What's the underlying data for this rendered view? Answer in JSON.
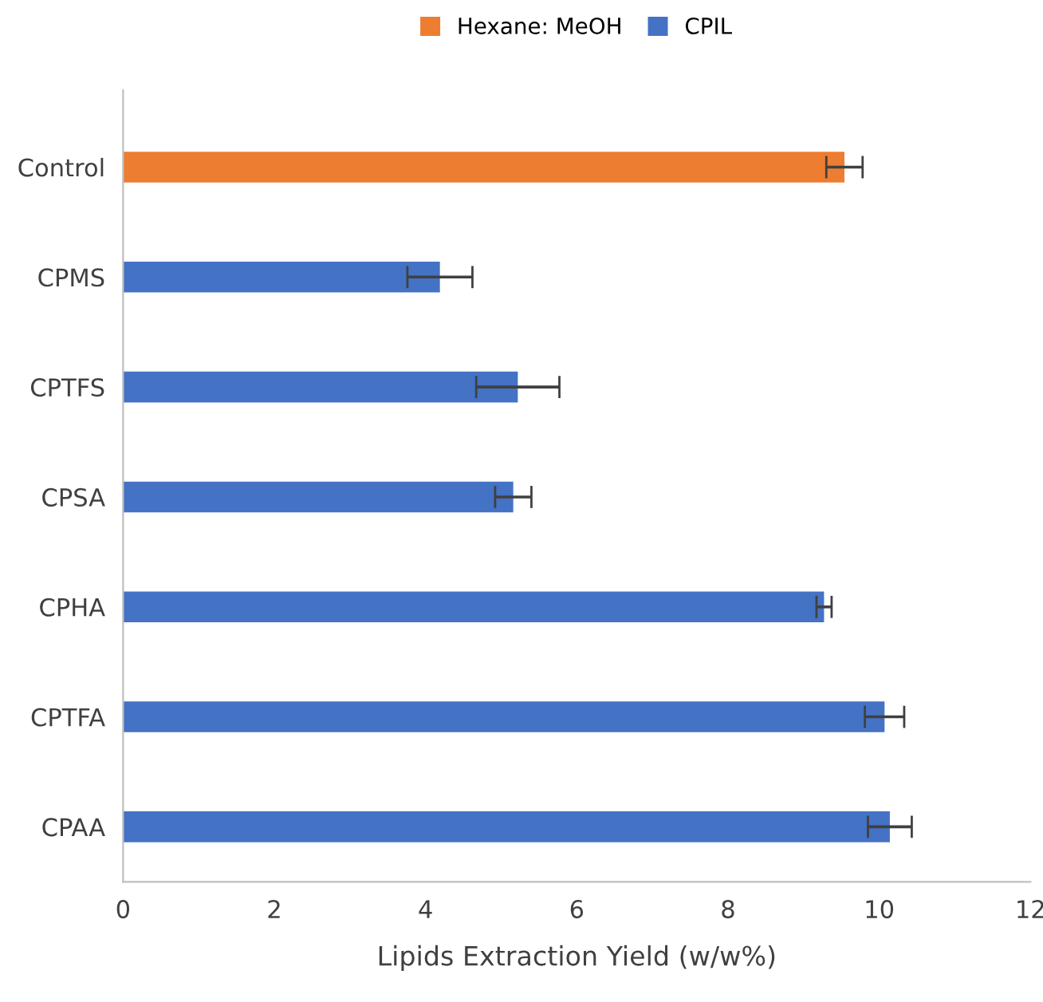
{
  "chart_data": {
    "type": "bar",
    "orientation": "horizontal",
    "xlabel": "Lipids Extraction Yield (w/w%)",
    "categories": [
      "Control",
      "CPMS",
      "CPTFS",
      "CPSA",
      "CPHA",
      "CPTFA",
      "CPAA"
    ],
    "series": [
      {
        "name": "Hexane: MeOH",
        "color": "#ed7d31",
        "values": [
          9.54,
          null,
          null,
          null,
          null,
          null,
          null
        ],
        "errors": [
          0.24,
          null,
          null,
          null,
          null,
          null,
          null
        ]
      },
      {
        "name": "CPIL",
        "color": "#4472c4",
        "values": [
          null,
          4.19,
          5.22,
          5.16,
          9.27,
          10.07,
          10.14
        ],
        "errors": [
          null,
          0.43,
          0.55,
          0.24,
          0.1,
          0.26,
          0.29
        ]
      }
    ],
    "xlim": [
      0,
      12
    ],
    "xticks": [
      0,
      2,
      4,
      6,
      8,
      10,
      12
    ],
    "grid": false,
    "legend": "top"
  }
}
